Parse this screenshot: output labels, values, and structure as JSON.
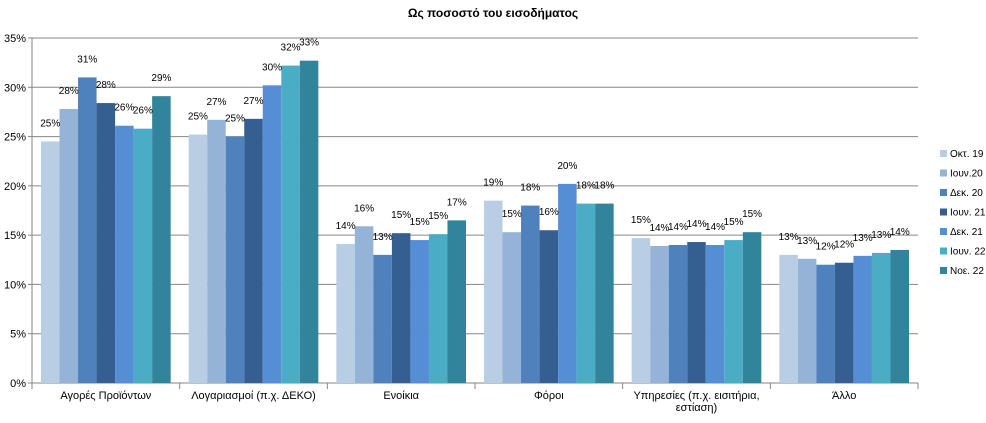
{
  "chart_data": {
    "type": "bar",
    "title": "Ως ποσοστό του εισοδήματος",
    "xlabel": "",
    "ylabel": "",
    "ylim": [
      0,
      35
    ],
    "yticks": [
      "0%",
      "5%",
      "10%",
      "15%",
      "20%",
      "25%",
      "30%",
      "35%"
    ],
    "grid": true,
    "legend_position": "right",
    "categories": [
      "Αγορές Προϊόντων",
      "Λογαριασμοί (π.χ. ΔΕΚΟ)",
      "Ενοίκια",
      "Φόροι",
      "Υπηρεσίες (π.χ. εισιτήρια, εστίαση)",
      "Άλλο"
    ],
    "series": [
      {
        "name": "Οκτ. 19",
        "color": "#b9cde5",
        "values": [
          24.5,
          25.2,
          14.1,
          18.5,
          14.7,
          13.0
        ],
        "labels": [
          "25%",
          "25%",
          "14%",
          "19%",
          "15%",
          "13%"
        ]
      },
      {
        "name": "Ιουν.20",
        "color": "#95b3d7",
        "values": [
          27.8,
          26.7,
          15.9,
          15.3,
          13.9,
          12.6
        ],
        "labels": [
          "28%",
          "27%",
          "16%",
          "15%",
          "14%",
          "13%"
        ]
      },
      {
        "name": "Δεκ. 20",
        "color": "#4f81bd",
        "values": [
          31.0,
          25.0,
          13.0,
          18.0,
          14.0,
          12.0
        ],
        "labels": [
          "31%",
          "25%",
          "13%",
          "18%",
          "14%",
          "12%"
        ]
      },
      {
        "name": "Ιουν. 21",
        "color": "#365f91",
        "values": [
          28.4,
          26.8,
          15.2,
          15.5,
          14.3,
          12.2
        ],
        "labels": [
          "28%",
          "27%",
          "15%",
          "16%",
          "14%",
          "12%"
        ]
      },
      {
        "name": "Δεκ. 21",
        "color": "#558ed5",
        "values": [
          26.1,
          30.2,
          14.5,
          20.2,
          14.0,
          12.9
        ],
        "labels": [
          "26%",
          "30%",
          "15%",
          "20%",
          "14%",
          "13%"
        ]
      },
      {
        "name": "Ιουν. 22",
        "color": "#4bacc6",
        "values": [
          25.8,
          32.2,
          15.1,
          18.2,
          14.5,
          13.2
        ],
        "labels": [
          "26%",
          "32%",
          "15%",
          "18%",
          "15%",
          "13%"
        ]
      },
      {
        "name": "Νοε. 22",
        "color": "#31849b",
        "values": [
          29.1,
          32.7,
          16.5,
          18.2,
          15.3,
          13.5
        ],
        "labels": [
          "29%",
          "33%",
          "17%",
          "18%",
          "15%",
          "14%"
        ]
      }
    ]
  }
}
